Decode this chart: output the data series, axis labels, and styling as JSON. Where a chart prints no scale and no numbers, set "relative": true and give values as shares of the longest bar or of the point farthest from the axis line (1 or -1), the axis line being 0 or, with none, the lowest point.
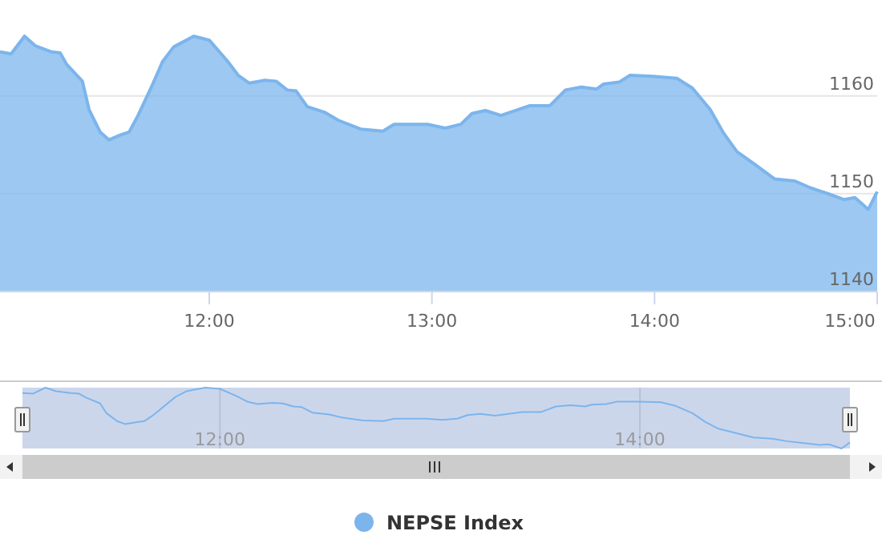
{
  "chart_data": [
    {
      "type": "area",
      "xlim": [
        11.06,
        15
      ],
      "ylim": [
        1140,
        1169.8
      ],
      "xticks": [
        {
          "value": 12,
          "label": "12:00"
        },
        {
          "value": 13,
          "label": "13:00"
        },
        {
          "value": 14,
          "label": "14:00"
        },
        {
          "value": 15,
          "label": "15:00"
        }
      ],
      "yticks": [
        1140,
        1150,
        1160
      ],
      "grid": "y",
      "legend": "bottom",
      "series": [
        {
          "name": "NEPSE Index",
          "color": "#7cb5ec",
          "x": [
            11.06,
            11.11,
            11.17,
            11.22,
            11.29,
            11.33,
            11.36,
            11.43,
            11.46,
            11.51,
            11.55,
            11.6,
            11.64,
            11.68,
            11.74,
            11.79,
            11.84,
            11.93,
            12.0,
            12.08,
            12.13,
            12.18,
            12.25,
            12.3,
            12.35,
            12.39,
            12.44,
            12.52,
            12.58,
            12.68,
            12.78,
            12.83,
            12.98,
            13.06,
            13.13,
            13.18,
            13.24,
            13.31,
            13.44,
            13.53,
            13.6,
            13.67,
            13.74,
            13.77,
            13.84,
            13.89,
            13.99,
            14.1,
            14.17,
            14.25,
            14.31,
            14.37,
            14.45,
            14.54,
            14.63,
            14.7,
            14.78,
            14.85,
            14.9,
            14.96,
            15.0
          ],
          "values": [
            1164.5,
            1164.3,
            1166.1,
            1165.1,
            1164.5,
            1164.4,
            1163.2,
            1161.5,
            1158.6,
            1156.3,
            1155.5,
            1156.0,
            1156.3,
            1158.0,
            1160.9,
            1163.5,
            1165.0,
            1166.1,
            1165.7,
            1163.6,
            1162.1,
            1161.3,
            1161.6,
            1161.5,
            1160.6,
            1160.5,
            1158.9,
            1158.3,
            1157.5,
            1156.6,
            1156.4,
            1157.1,
            1157.1,
            1156.7,
            1157.1,
            1158.2,
            1158.5,
            1158.0,
            1159.0,
            1159.0,
            1160.6,
            1160.9,
            1160.7,
            1161.2,
            1161.4,
            1162.1,
            1162.0,
            1161.8,
            1160.8,
            1158.6,
            1156.2,
            1154.3,
            1153.0,
            1151.5,
            1151.3,
            1150.6,
            1150.0,
            1149.4,
            1149.6,
            1148.4,
            1150.2
          ]
        }
      ]
    },
    {
      "type": "line",
      "relative": true,
      "xlim": [
        11.06,
        15
      ],
      "xticks": [
        {
          "value": 12,
          "label": "12:00"
        },
        {
          "value": 14,
          "label": "14:00"
        }
      ],
      "grid": "x",
      "tick_labels": "x",
      "series": [
        {
          "color": "#7cb5ec",
          "x": [
            11.06,
            11.11,
            11.17,
            11.22,
            11.29,
            11.33,
            11.36,
            11.43,
            11.46,
            11.51,
            11.55,
            11.6,
            11.64,
            11.68,
            11.74,
            11.79,
            11.84,
            11.93,
            12.0,
            12.08,
            12.13,
            12.18,
            12.25,
            12.3,
            12.35,
            12.39,
            12.44,
            12.52,
            12.58,
            12.68,
            12.78,
            12.83,
            12.98,
            13.06,
            13.13,
            13.18,
            13.24,
            13.31,
            13.44,
            13.53,
            13.6,
            13.67,
            13.74,
            13.77,
            13.84,
            13.89,
            13.99,
            14.1,
            14.17,
            14.25,
            14.31,
            14.37,
            14.45,
            14.54,
            14.63,
            14.7,
            14.78,
            14.85,
            14.9,
            14.96,
            15.0
          ],
          "values": [
            0.91,
            0.9,
            1.0,
            0.94,
            0.91,
            0.9,
            0.84,
            0.74,
            0.58,
            0.45,
            0.4,
            0.43,
            0.45,
            0.54,
            0.71,
            0.85,
            0.94,
            1.0,
            0.98,
            0.86,
            0.77,
            0.73,
            0.75,
            0.74,
            0.69,
            0.68,
            0.59,
            0.56,
            0.51,
            0.46,
            0.45,
            0.49,
            0.49,
            0.47,
            0.49,
            0.55,
            0.57,
            0.54,
            0.6,
            0.6,
            0.69,
            0.71,
            0.69,
            0.72,
            0.73,
            0.77,
            0.77,
            0.76,
            0.7,
            0.58,
            0.44,
            0.33,
            0.26,
            0.18,
            0.16,
            0.12,
            0.09,
            0.06,
            0.07,
            0,
            0.1
          ]
        }
      ]
    }
  ]
}
